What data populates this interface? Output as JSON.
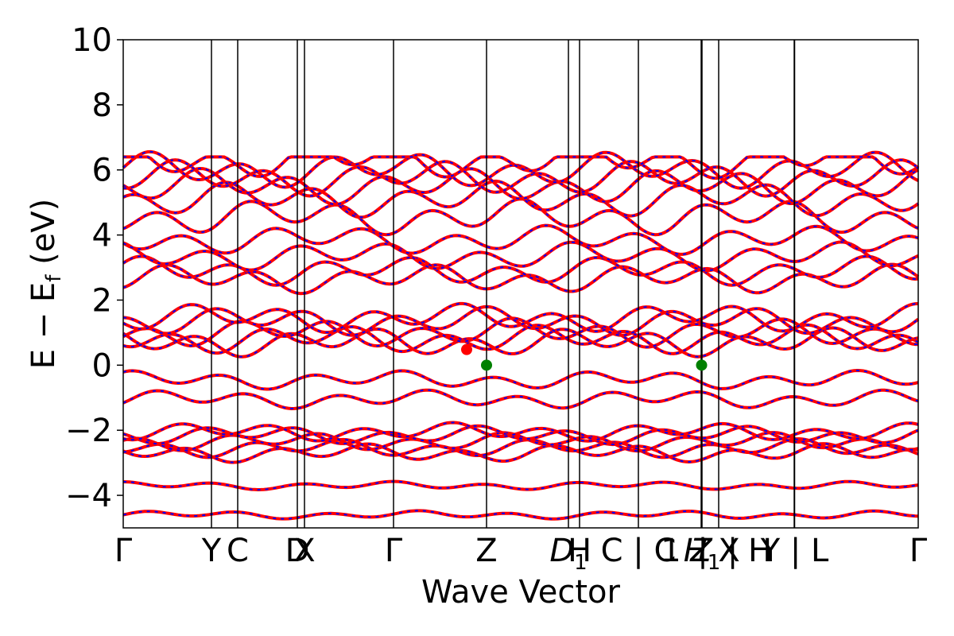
{
  "chart_data": {
    "type": "line",
    "title": "",
    "xlabel": "Wave Vector",
    "ylabel_parts": {
      "main": "E − E",
      "sub": "f",
      "unit": " (eV)"
    },
    "ylim": [
      -5,
      10
    ],
    "yticks": [
      -4,
      -2,
      0,
      2,
      4,
      6,
      8,
      10
    ],
    "ytick_labels": [
      "−4",
      "−2",
      "0",
      "2",
      "4",
      "6",
      "8",
      "10"
    ],
    "x_range": [
      0,
      100
    ],
    "high_symmetry_points": [
      {
        "x": 0.0,
        "label": "Γ"
      },
      {
        "x": 11.1,
        "label": "Y"
      },
      {
        "x": 14.4,
        "label": "C"
      },
      {
        "x": 21.9,
        "label": "D"
      },
      {
        "x": 22.8,
        "label": "X"
      },
      {
        "x": 34.0,
        "label": "Γ"
      },
      {
        "x": 45.7,
        "label": "Z"
      },
      {
        "x": 56.0,
        "label": "D1"
      },
      {
        "x": 57.4,
        "label": "H"
      },
      {
        "x": 64.8,
        "label": "C | C1"
      },
      {
        "x": 72.7,
        "label": "Z"
      },
      {
        "x": 72.8,
        "label": "H1"
      },
      {
        "x": 74.9,
        "label": "| X"
      },
      {
        "x": 84.4,
        "label": "| H"
      },
      {
        "x": 84.45,
        "label": "Y | L"
      },
      {
        "x": 100.0,
        "label": "Γ"
      }
    ],
    "tick_labels_render": [
      {
        "x": 0.0,
        "text": "Γ",
        "italic": false,
        "sub": ""
      },
      {
        "x": 11.1,
        "text": "Y",
        "italic": false,
        "sub": ""
      },
      {
        "x": 14.4,
        "text": "C",
        "italic": false,
        "sub": ""
      },
      {
        "x": 21.9,
        "text": "D",
        "italic": false,
        "sub": ""
      },
      {
        "x": 22.8,
        "text": "X",
        "italic": false,
        "sub": ""
      },
      {
        "x": 34.0,
        "text": "Γ",
        "italic": false,
        "sub": ""
      },
      {
        "x": 45.7,
        "text": "Z",
        "italic": false,
        "sub": ""
      },
      {
        "x": 56.0,
        "text": "D",
        "italic": true,
        "sub": "1"
      },
      {
        "x": 57.4,
        "text": "H",
        "italic": false,
        "sub": ""
      },
      {
        "x": 64.8,
        "text": "C | C",
        "italic": false,
        "sub": ""
      },
      {
        "x": 68.9,
        "text": "1",
        "italic": false,
        "sub": ""
      },
      {
        "x": 72.7,
        "text": "Z",
        "italic": true,
        "sub": ""
      },
      {
        "x": 72.8,
        "text": "H",
        "italic": true,
        "sub": "1"
      },
      {
        "x": 74.9,
        "text": "| X",
        "italic": false,
        "sub": ""
      },
      {
        "x": 78.8,
        "text": "| H",
        "italic": false,
        "sub": ""
      },
      {
        "x": 84.45,
        "text": "Y | L",
        "italic": false,
        "sub": ""
      },
      {
        "x": 100.0,
        "text": "Γ",
        "italic": false,
        "sub": ""
      }
    ],
    "series_colors": {
      "up": "#ff0000",
      "down": "#0000ff"
    },
    "band_energies_at_gamma": [
      -4.6,
      -3.7,
      -2.7,
      -2.55,
      -2.35,
      -2.15,
      -2.05,
      -1.05,
      -0.45,
      0.7,
      0.8,
      1.0,
      1.35,
      1.45,
      2.65,
      2.9,
      3.35,
      3.85,
      4.55,
      5.1,
      5.5,
      5.75,
      6.0,
      6.3
    ],
    "markers": [
      {
        "x": 43.2,
        "y": 0.48,
        "color": "#ff0000",
        "name": "cbm-marker"
      },
      {
        "x": 45.7,
        "y": 0.0,
        "color": "#008000",
        "name": "vbm-marker-1"
      },
      {
        "x": 72.75,
        "y": 0.0,
        "color": "#008000",
        "name": "vbm-marker-2"
      }
    ],
    "grid": false,
    "legend": "none"
  }
}
